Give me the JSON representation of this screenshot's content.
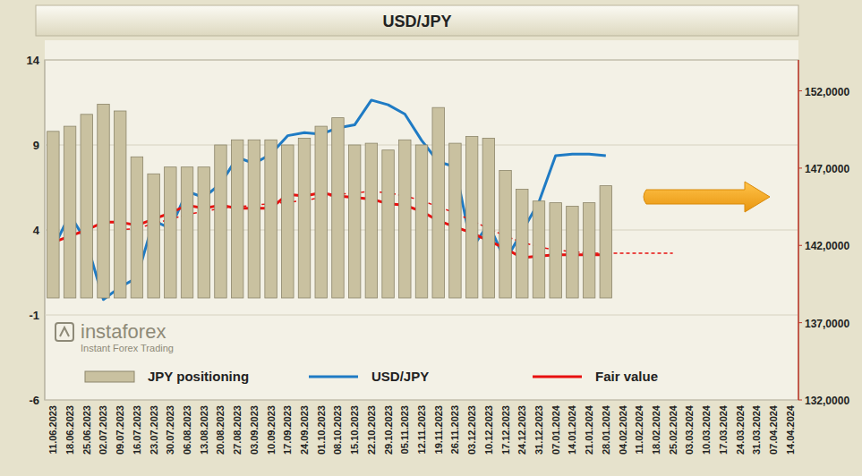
{
  "chart_data": {
    "type": "bar",
    "title": "USD/JPY",
    "categories": [
      "11.06.2023",
      "18.06.2023",
      "25.06.2023",
      "02.07.2023",
      "09.07.2023",
      "16.07.2023",
      "23.07.2023",
      "30.07.2023",
      "06.08.2023",
      "13.08.2023",
      "20.08.2023",
      "27.08.2023",
      "03.09.2023",
      "10.09.2023",
      "17.09.2023",
      "24.09.2023",
      "01.10.2023",
      "08.10.2023",
      "15.10.2023",
      "22.10.2023",
      "29.10.2023",
      "05.11.2023",
      "12.11.2023",
      "19.11.2023",
      "26.11.2023",
      "03.12.2023",
      "10.12.2023",
      "17.12.2023",
      "24.12.2023",
      "31.12.2023",
      "07.01.2024",
      "14.01.2024",
      "21.01.2024",
      "28.01.2024",
      "04.02.2024",
      "11.02.2024",
      "18.02.2024",
      "25.02.2024",
      "03.03.2024",
      "10.03.2024",
      "17.03.2024",
      "24.03.2024",
      "31.03.2024",
      "07.04.2024",
      "14.04.2024"
    ],
    "series": [
      {
        "name": "JPY positioning",
        "type": "bar",
        "color": "#c9c1a0",
        "values": [
          9.8,
          10.1,
          10.8,
          11.4,
          11.0,
          8.3,
          7.3,
          7.7,
          7.7,
          7.7,
          9.0,
          9.3,
          9.3,
          9.3,
          9.0,
          9.4,
          10.1,
          10.6,
          9.0,
          9.1,
          8.7,
          9.3,
          9.0,
          11.2,
          9.1,
          9.5,
          9.4,
          7.5,
          6.4,
          5.7,
          5.6,
          5.4,
          5.6,
          6.6,
          null,
          null,
          null,
          null,
          null,
          null,
          null,
          null,
          null,
          null,
          null
        ]
      },
      {
        "name": "USD/JPY",
        "type": "line",
        "axis": "y2",
        "color": "#1f7bc4",
        "line_style": "solid",
        "values": [
          141.8,
          144.0,
          142.2,
          138.5,
          139.3,
          139.9,
          143.6,
          143.1,
          145.5,
          145.1,
          146.0,
          147.7,
          147.3,
          147.9,
          149.1,
          149.3,
          149.2,
          149.6,
          149.8,
          151.4,
          151.1,
          150.5,
          148.8,
          147.4,
          147.1,
          141.8,
          143.4,
          141.0,
          142.9,
          144.8,
          147.8,
          147.9,
          147.9,
          147.8,
          null,
          null,
          null,
          null,
          null,
          null,
          null,
          null,
          null,
          null,
          null
        ]
      },
      {
        "name": "Fair value",
        "type": "line",
        "axis": "y2",
        "color": "#e8100f",
        "line_style": "solid",
        "values": [
          142.2,
          142.6,
          143.0,
          143.5,
          143.5,
          143.3,
          143.7,
          144.1,
          144.6,
          144.4,
          144.6,
          144.4,
          144.4,
          144.4,
          145.3,
          145.2,
          145.4,
          145.2,
          145.1,
          145.0,
          144.7,
          144.6,
          144.2,
          143.6,
          143.2,
          142.8,
          142.3,
          141.8,
          141.2,
          141.3,
          141.4,
          141.4,
          141.4,
          141.4,
          null,
          null,
          null,
          null,
          null,
          null,
          null,
          null,
          null,
          null,
          null
        ]
      },
      {
        "type": "line",
        "axis": "y2",
        "color": "#e8100f",
        "line_style": "dashed",
        "values": [
          null,
          null,
          null,
          null,
          143.0,
          143.1,
          143.4,
          143.7,
          144.0,
          144.2,
          144.4,
          144.5,
          144.6,
          144.7,
          144.8,
          144.9,
          145.1,
          145.3,
          145.4,
          145.5,
          145.4,
          145.2,
          144.9,
          144.5,
          144.1,
          143.6,
          143.1,
          142.6,
          142.2,
          141.9,
          141.7,
          141.6,
          141.5,
          141.5,
          141.5,
          141.5,
          141.5,
          141.5,
          null,
          null,
          null,
          null,
          null,
          null,
          null
        ]
      }
    ],
    "ylim": [
      -6,
      14
    ],
    "yticks": [
      -6,
      -1,
      4,
      9,
      14
    ],
    "y2lim": [
      132,
      154
    ],
    "y2ticks": [
      {
        "value": 132,
        "label": "132,0000"
      },
      {
        "value": 137,
        "label": "137,0000"
      },
      {
        "value": 142,
        "label": "142,0000"
      },
      {
        "value": 147,
        "label": "147,0000"
      },
      {
        "value": 152,
        "label": "152,0000"
      }
    ],
    "grid": true,
    "legend": "bottom",
    "annotations": [
      "instaforex",
      "Instant Forex Trading"
    ]
  }
}
